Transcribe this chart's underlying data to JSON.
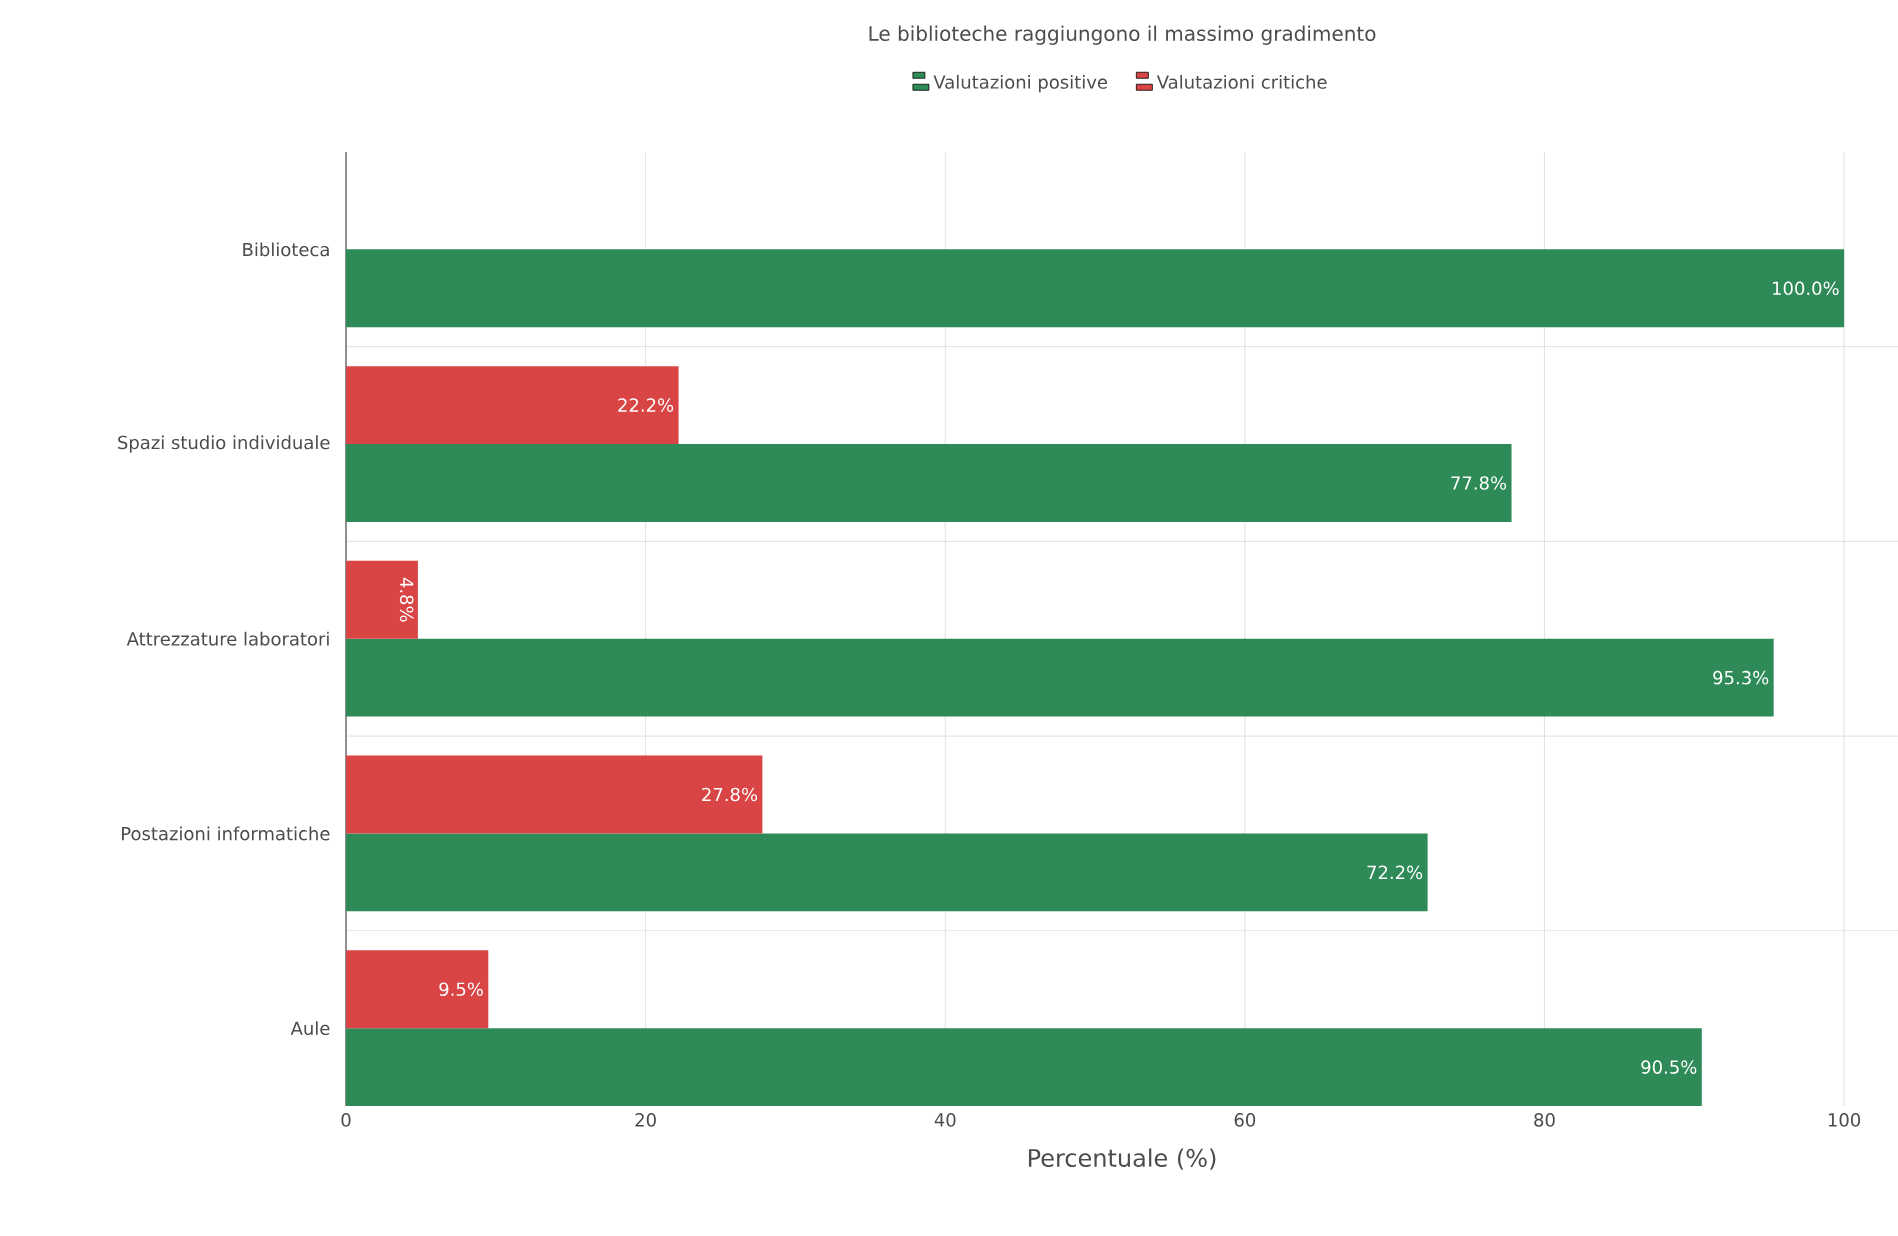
{
  "chart_data": {
    "type": "bar",
    "orientation": "horizontal",
    "title": "Le biblioteche raggiungono il massimo gradimento",
    "xlabel": "Percentuale (%)",
    "categories": [
      "Biblioteca",
      "Spazi studio individuale",
      "Attrezzature laboratori",
      "Postazioni informatiche",
      "Aule"
    ],
    "series": [
      {
        "name": "Valutazioni positive",
        "color": "#2e8b57",
        "values": [
          100.0,
          77.8,
          95.3,
          72.2,
          90.5
        ],
        "value_labels": [
          "100.0%",
          "77.8%",
          "95.3%",
          "72.2%",
          "90.5%"
        ]
      },
      {
        "name": "Valutazioni critiche",
        "color": "#d94545",
        "values": [
          null,
          22.2,
          4.8,
          27.8,
          9.5
        ],
        "value_labels": [
          null,
          "22.2%",
          "4.8%",
          "27.8%",
          "9.5%"
        ]
      }
    ],
    "xlim": [
      0,
      103.6
    ],
    "xticks": [
      0,
      20,
      40,
      60,
      80,
      100
    ],
    "grid": true,
    "legend": "top"
  }
}
